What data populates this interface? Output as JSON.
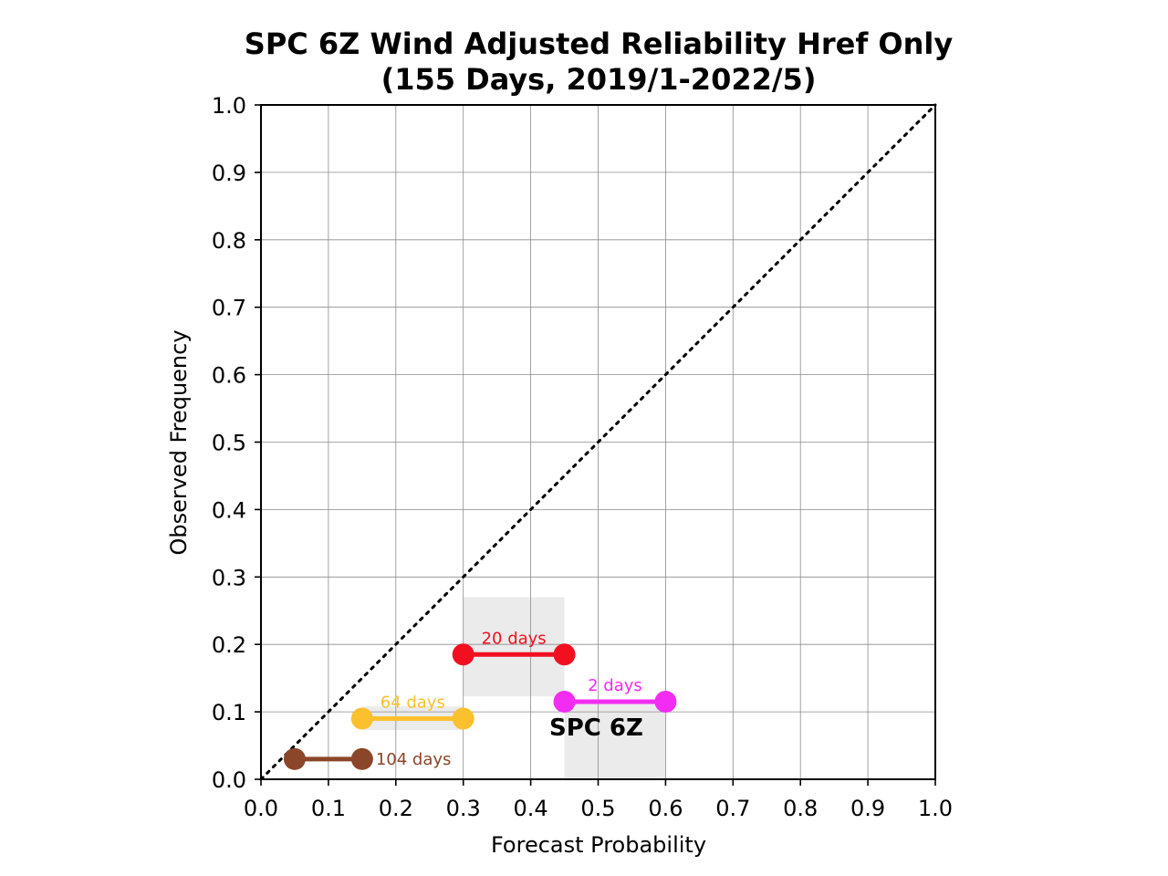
{
  "chart_data": {
    "type": "line",
    "title": "SPC 6Z Wind Adjusted Reliability Href Only",
    "subtitle": "(155 Days, 2019/1-2022/5)",
    "xlabel": "Forecast Probability",
    "ylabel": "Observed Frequency",
    "xlim": [
      0.0,
      1.0
    ],
    "ylim": [
      0.0,
      1.0
    ],
    "xticks": [
      "0.0",
      "0.1",
      "0.2",
      "0.3",
      "0.4",
      "0.5",
      "0.6",
      "0.7",
      "0.8",
      "0.9",
      "1.0"
    ],
    "yticks": [
      "0.0",
      "0.1",
      "0.2",
      "0.3",
      "0.4",
      "0.5",
      "0.6",
      "0.7",
      "0.8",
      "0.9",
      "1.0"
    ],
    "grid": true,
    "diagonal": true,
    "annotation": "SPC 6Z",
    "series": [
      {
        "label": "104 days",
        "x": [
          0.05,
          0.15
        ],
        "y": [
          0.03,
          0.03
        ],
        "color": "#8b4528",
        "band": null
      },
      {
        "label": "64 days",
        "x": [
          0.15,
          0.3
        ],
        "y": [
          0.09,
          0.09
        ],
        "color": "#fbc02d",
        "band": [
          0.073,
          0.108
        ]
      },
      {
        "label": "20 days",
        "x": [
          0.3,
          0.45
        ],
        "y": [
          0.185,
          0.185
        ],
        "color": "#f21020",
        "band": [
          0.123,
          0.27
        ]
      },
      {
        "label": "2 days",
        "x": [
          0.45,
          0.6
        ],
        "y": [
          0.115,
          0.115
        ],
        "color": "#f22cf2",
        "band": [
          0.0,
          0.115
        ]
      }
    ]
  }
}
